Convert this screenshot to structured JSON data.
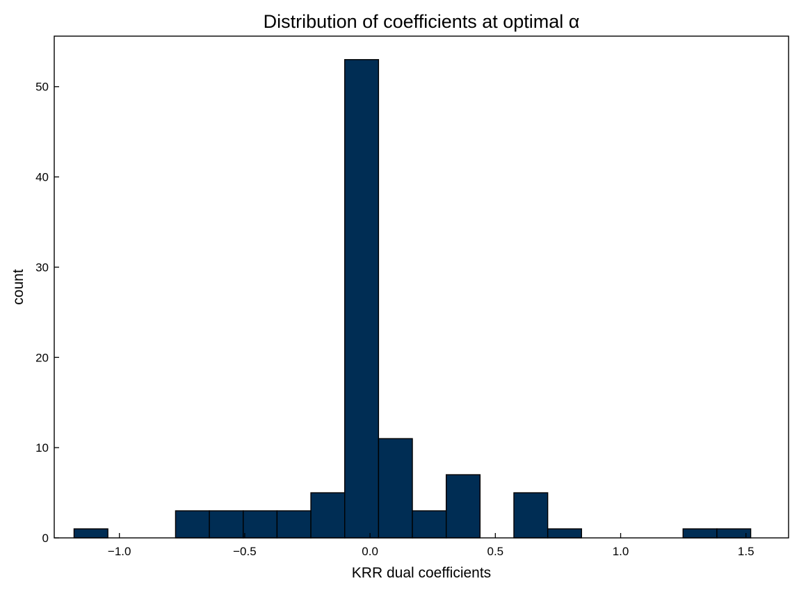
{
  "chart_data": {
    "type": "bar",
    "subtype": "histogram",
    "title": "Distribution of coefficients at optimal α",
    "xlabel": "KRR dual coefficients",
    "ylabel": "count",
    "xlim": [
      -1.26,
      1.67
    ],
    "ylim": [
      0,
      55.6
    ],
    "bar_color": "#002D54",
    "grid": false,
    "ticks_direction": "in",
    "x_ticks": [
      {
        "value": -1.0,
        "label": "−1.0"
      },
      {
        "value": -0.5,
        "label": "−0.5"
      },
      {
        "value": 0.0,
        "label": "0.0"
      },
      {
        "value": 0.5,
        "label": "0.5"
      },
      {
        "value": 1.0,
        "label": "1.0"
      },
      {
        "value": 1.5,
        "label": "1.5"
      }
    ],
    "y_ticks": [
      {
        "value": 0,
        "label": "0"
      },
      {
        "value": 10,
        "label": "10"
      },
      {
        "value": 20,
        "label": "20"
      },
      {
        "value": 30,
        "label": "30"
      },
      {
        "value": 40,
        "label": "40"
      },
      {
        "value": 50,
        "label": "50"
      }
    ],
    "bins": [
      {
        "x0": -1.181,
        "x1": -1.046,
        "count": 1
      },
      {
        "x0": -1.046,
        "x1": -0.911,
        "count": 0
      },
      {
        "x0": -0.911,
        "x1": -0.776,
        "count": 0
      },
      {
        "x0": -0.776,
        "x1": -0.641,
        "count": 3
      },
      {
        "x0": -0.641,
        "x1": -0.506,
        "count": 3
      },
      {
        "x0": -0.506,
        "x1": -0.371,
        "count": 3
      },
      {
        "x0": -0.371,
        "x1": -0.236,
        "count": 3
      },
      {
        "x0": -0.236,
        "x1": -0.101,
        "count": 5
      },
      {
        "x0": -0.101,
        "x1": 0.034,
        "count": 53
      },
      {
        "x0": 0.034,
        "x1": 0.169,
        "count": 11
      },
      {
        "x0": 0.169,
        "x1": 0.304,
        "count": 3
      },
      {
        "x0": 0.304,
        "x1": 0.439,
        "count": 7
      },
      {
        "x0": 0.439,
        "x1": 0.574,
        "count": 0
      },
      {
        "x0": 0.574,
        "x1": 0.709,
        "count": 5
      },
      {
        "x0": 0.709,
        "x1": 0.844,
        "count": 1
      },
      {
        "x0": 0.844,
        "x1": 0.979,
        "count": 0
      },
      {
        "x0": 0.979,
        "x1": 1.114,
        "count": 0
      },
      {
        "x0": 1.114,
        "x1": 1.249,
        "count": 0
      },
      {
        "x0": 1.249,
        "x1": 1.384,
        "count": 1
      },
      {
        "x0": 1.384,
        "x1": 1.519,
        "count": 1
      }
    ]
  }
}
